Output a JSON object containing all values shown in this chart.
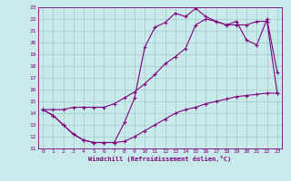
{
  "xlabel": "Windchill (Refroidissement éolien,°C)",
  "background_color": "#c8eaea",
  "grid_color": "#a0c8c8",
  "line_color": "#800080",
  "ylim": [
    11,
    23
  ],
  "xlim": [
    0,
    23
  ],
  "yticks": [
    11,
    12,
    13,
    14,
    15,
    16,
    17,
    18,
    19,
    20,
    21,
    22,
    23
  ],
  "xticks": [
    0,
    1,
    2,
    3,
    4,
    5,
    6,
    7,
    8,
    9,
    10,
    11,
    12,
    13,
    14,
    15,
    16,
    17,
    18,
    19,
    20,
    21,
    22,
    23
  ],
  "line1_x": [
    0,
    1,
    2,
    3,
    4,
    5,
    6,
    7,
    8,
    9,
    10,
    11,
    12,
    13,
    14,
    15,
    16,
    17,
    18,
    19,
    20,
    21,
    22,
    23
  ],
  "line1_y": [
    14.3,
    13.8,
    13.0,
    12.2,
    11.7,
    11.5,
    11.5,
    11.5,
    11.6,
    12.0,
    12.5,
    13.0,
    13.5,
    14.0,
    14.3,
    14.5,
    14.8,
    15.0,
    15.2,
    15.4,
    15.5,
    15.6,
    15.7,
    15.7
  ],
  "line2_x": [
    0,
    1,
    2,
    3,
    4,
    5,
    6,
    7,
    8,
    9,
    10,
    11,
    12,
    13,
    14,
    15,
    16,
    17,
    18,
    19,
    20,
    21,
    22,
    23
  ],
  "line2_y": [
    14.3,
    13.8,
    13.0,
    12.2,
    11.7,
    11.5,
    11.5,
    11.5,
    13.2,
    15.3,
    19.6,
    21.3,
    21.7,
    22.5,
    22.2,
    22.9,
    22.2,
    21.8,
    21.5,
    21.8,
    20.2,
    19.8,
    22.0,
    17.5
  ],
  "line3_x": [
    0,
    1,
    2,
    3,
    4,
    5,
    6,
    7,
    8,
    9,
    10,
    11,
    12,
    13,
    14,
    15,
    16,
    17,
    18,
    19,
    20,
    21,
    22,
    23
  ],
  "line3_y": [
    14.3,
    14.3,
    14.3,
    14.5,
    14.5,
    14.5,
    14.5,
    14.8,
    15.3,
    15.8,
    16.5,
    17.3,
    18.2,
    18.8,
    19.5,
    21.5,
    22.0,
    21.8,
    21.5,
    21.5,
    21.5,
    21.8,
    21.8,
    15.7
  ]
}
